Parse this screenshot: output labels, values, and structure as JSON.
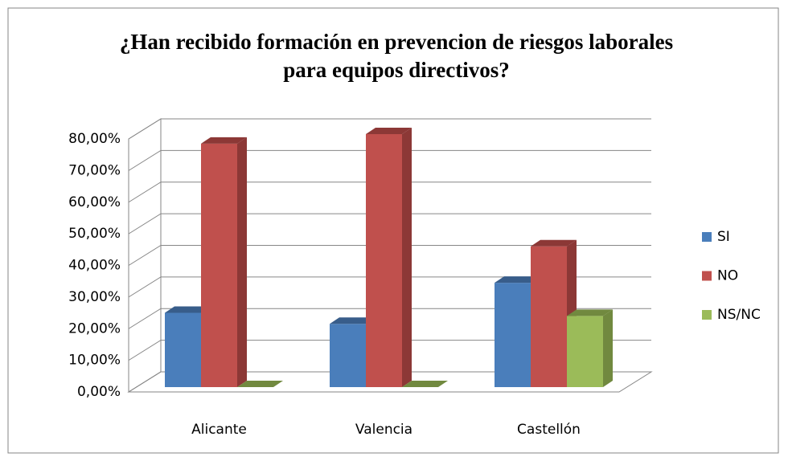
{
  "chart_data": {
    "type": "bar3d",
    "title": "¿Han recibido formación en prevencion de riesgos laborales para equipos directivos?",
    "categories": [
      "Alicante",
      "Valencia",
      "Castellón"
    ],
    "series": [
      {
        "name": "SI",
        "color": "#4a7ebb",
        "side": "#385d8a",
        "values": [
          23.5,
          20,
          33
        ]
      },
      {
        "name": "NO",
        "color": "#c0504d",
        "side": "#8c3836",
        "values": [
          77,
          80,
          44.5
        ]
      },
      {
        "name": "NS/NC",
        "color": "#9bbb59",
        "side": "#71893f",
        "values": [
          0,
          0,
          22.5
        ]
      }
    ],
    "ylim": [
      0,
      80
    ],
    "yticks": [
      {
        "value": 0,
        "label": "0,00%"
      },
      {
        "value": 10,
        "label": "10,00%"
      },
      {
        "value": 20,
        "label": "20,00%"
      },
      {
        "value": 30,
        "label": "30,00%"
      },
      {
        "value": 40,
        "label": "40,00%"
      },
      {
        "value": 50,
        "label": "50,00%"
      },
      {
        "value": 60,
        "label": "60,00%"
      },
      {
        "value": 70,
        "label": "70,00%"
      },
      {
        "value": 80,
        "label": "80,00%"
      }
    ],
    "grid": true,
    "legend": "right"
  }
}
